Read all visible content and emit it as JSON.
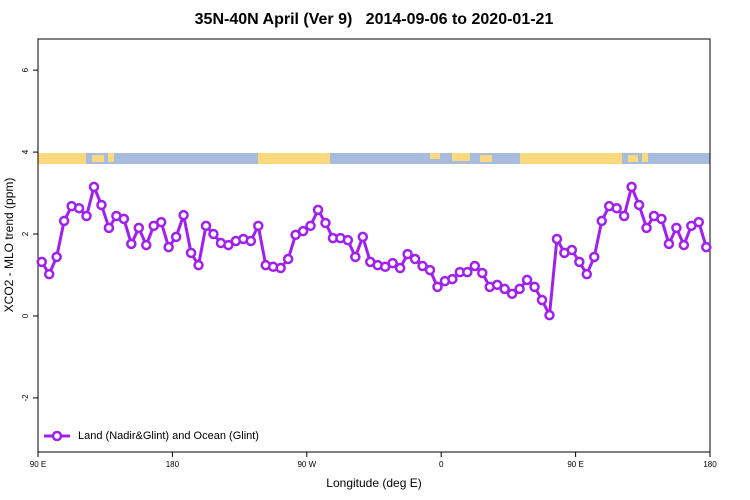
{
  "chart_data": {
    "type": "line",
    "title": "35N-40N April (Ver 9)   2014-09-06 to 2020-01-21",
    "x_label": "Longitude (deg E)",
    "y_label": "XCO2 - MLO trend (ppm)",
    "x": [
      92.5,
      97.5,
      102.5,
      107.5,
      112.5,
      117.5,
      122.5,
      127.5,
      132.5,
      137.5,
      142.5,
      147.5,
      152.5,
      157.5,
      162.5,
      167.5,
      172.5,
      177.5,
      182.5,
      187.5,
      192.5,
      197.5,
      202.5,
      207.5,
      212.5,
      217.5,
      222.5,
      227.5,
      232.5,
      237.5,
      242.5,
      247.5,
      252.5,
      257.5,
      262.5,
      267.5,
      272.5,
      277.5,
      282.5,
      287.5,
      292.5,
      297.5,
      302.5,
      307.5,
      312.5,
      317.5,
      322.5,
      327.5,
      332.5,
      337.5,
      342.5,
      347.5,
      352.5,
      357.5,
      362.5,
      367.5,
      372.5,
      377.5,
      382.5,
      387.5,
      392.5,
      397.5,
      402.5,
      407.5,
      412.5,
      417.5,
      422.5,
      427.5,
      432.5,
      437.5,
      442.5,
      447.5,
      452.5,
      457.5,
      462.5,
      467.5,
      472.5,
      477.5,
      482.5,
      487.5,
      492.5,
      497.5,
      502.5,
      507.5,
      512.5,
      517.5,
      522.5,
      527.5,
      532.5,
      537.5
    ],
    "series": [
      {
        "name": "Land (Nadir&Glint) and Ocean (Glint)",
        "color": "#a020f0",
        "values": [
          1.32,
          1.02,
          1.44,
          2.32,
          2.68,
          2.63,
          2.44,
          3.15,
          2.71,
          2.15,
          2.44,
          2.37,
          1.76,
          2.15,
          1.73,
          2.2,
          2.29,
          1.68,
          1.93,
          2.46,
          1.54,
          1.24,
          2.2,
          2.0,
          1.78,
          1.73,
          1.83,
          1.88,
          1.83,
          2.2,
          1.24,
          1.2,
          1.17,
          1.39,
          1.98,
          2.07,
          2.2,
          2.59,
          2.27,
          1.9,
          1.9,
          1.85,
          1.44,
          1.93,
          1.32,
          1.24,
          1.2,
          1.29,
          1.17,
          1.51,
          1.39,
          1.22,
          1.12,
          0.71,
          0.85,
          0.9,
          1.07,
          1.07,
          1.22,
          1.05,
          0.71,
          0.76,
          0.66,
          0.54,
          0.66,
          0.88,
          0.71,
          0.39,
          0.02,
          1.88,
          1.54,
          1.61,
          1.32,
          1.02,
          1.44,
          2.32,
          2.68,
          2.63,
          2.44,
          3.15,
          2.71,
          2.15,
          2.44,
          2.37,
          1.76,
          2.15,
          1.73,
          2.2,
          2.29,
          1.68
        ]
      }
    ],
    "xlim": [
      90,
      540
    ],
    "xticks": [
      {
        "value": 90,
        "label": "90 E"
      },
      180,
      {
        "value": 270,
        "label": "90 W"
      },
      {
        "value": 360,
        "label": "0"
      },
      {
        "value": 450,
        "label": "90 E"
      },
      {
        "value": 540,
        "label": "180"
      }
    ],
    "ylim": [
      -3.32,
      6.76
    ],
    "yticks": [
      -2,
      0,
      2,
      4,
      6
    ],
    "legend": "bottom-left"
  }
}
